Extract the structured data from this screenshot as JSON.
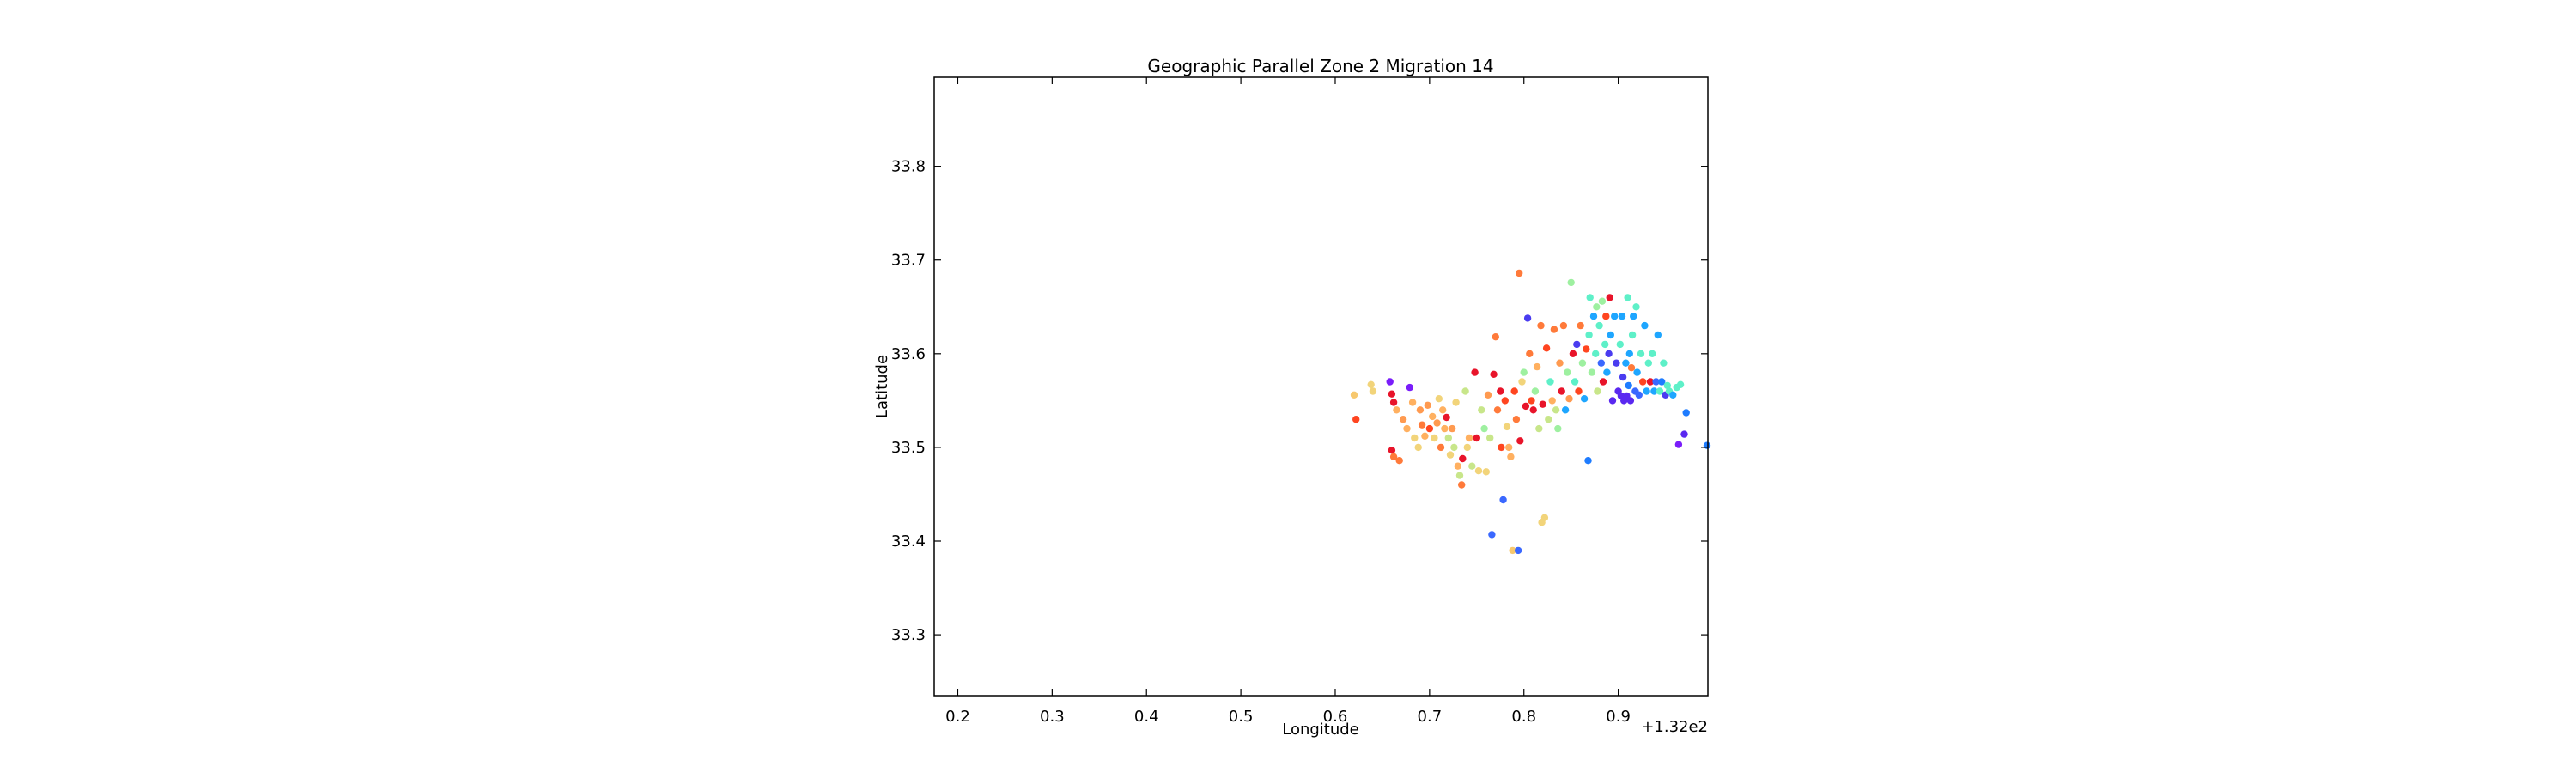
{
  "chart_data": {
    "type": "scatter",
    "title": "Geographic Parallel Zone 2 Migration 14",
    "xlabel": "Longitude",
    "ylabel": "Latitude",
    "x_offset_label": "+1.32e2",
    "xlim": [
      132.175,
      132.995
    ],
    "ylim": [
      33.235,
      33.895
    ],
    "x_ticks": [
      132.2,
      132.3,
      132.4,
      132.5,
      132.6,
      132.7,
      132.8,
      132.9
    ],
    "x_tick_labels": [
      "0.2",
      "0.3",
      "0.4",
      "0.5",
      "0.6",
      "0.7",
      "0.8",
      "0.9"
    ],
    "y_ticks": [
      33.3,
      33.4,
      33.5,
      33.6,
      33.7,
      33.8
    ],
    "y_tick_labels": [
      "33.3",
      "33.4",
      "33.5",
      "33.6",
      "33.7",
      "33.8"
    ],
    "grid": false,
    "legend": "none",
    "colormap": "rainbow",
    "points": [
      {
        "x": 132.62,
        "y": 33.556,
        "color": "#f7c86e"
      },
      {
        "x": 132.622,
        "y": 33.53,
        "color": "#ff4520"
      },
      {
        "x": 132.638,
        "y": 33.567,
        "color": "#f2d47a"
      },
      {
        "x": 132.64,
        "y": 33.56,
        "color": "#f2d47a"
      },
      {
        "x": 132.658,
        "y": 33.57,
        "color": "#7a1dfa"
      },
      {
        "x": 132.66,
        "y": 33.557,
        "color": "#e8142a"
      },
      {
        "x": 132.662,
        "y": 33.548,
        "color": "#e8142a"
      },
      {
        "x": 132.665,
        "y": 33.54,
        "color": "#ffb060"
      },
      {
        "x": 132.66,
        "y": 33.497,
        "color": "#e8142a"
      },
      {
        "x": 132.662,
        "y": 33.49,
        "color": "#ff7a3a"
      },
      {
        "x": 132.668,
        "y": 33.486,
        "color": "#ff7a3a"
      },
      {
        "x": 132.672,
        "y": 33.53,
        "color": "#ff9a50"
      },
      {
        "x": 132.676,
        "y": 33.52,
        "color": "#ffb060"
      },
      {
        "x": 132.679,
        "y": 33.564,
        "color": "#7a1dfa"
      },
      {
        "x": 132.682,
        "y": 33.548,
        "color": "#ffb060"
      },
      {
        "x": 132.684,
        "y": 33.51,
        "color": "#f2d47a"
      },
      {
        "x": 132.688,
        "y": 33.5,
        "color": "#f2d47a"
      },
      {
        "x": 132.69,
        "y": 33.54,
        "color": "#ff9a50"
      },
      {
        "x": 132.692,
        "y": 33.524,
        "color": "#ff7a3a"
      },
      {
        "x": 132.695,
        "y": 33.512,
        "color": "#ffb060"
      },
      {
        "x": 132.698,
        "y": 33.545,
        "color": "#ff9a50"
      },
      {
        "x": 132.7,
        "y": 33.52,
        "color": "#ff4520"
      },
      {
        "x": 132.703,
        "y": 33.533,
        "color": "#ffb060"
      },
      {
        "x": 132.705,
        "y": 33.51,
        "color": "#f2d47a"
      },
      {
        "x": 132.708,
        "y": 33.526,
        "color": "#ff9a50"
      },
      {
        "x": 132.71,
        "y": 33.552,
        "color": "#f2d47a"
      },
      {
        "x": 132.712,
        "y": 33.5,
        "color": "#ff7a3a"
      },
      {
        "x": 132.714,
        "y": 33.54,
        "color": "#ffb060"
      },
      {
        "x": 132.716,
        "y": 33.52,
        "color": "#ffb060"
      },
      {
        "x": 132.718,
        "y": 33.532,
        "color": "#e8142a"
      },
      {
        "x": 132.72,
        "y": 33.51,
        "color": "#c8e68a"
      },
      {
        "x": 132.722,
        "y": 33.492,
        "color": "#f2d47a"
      },
      {
        "x": 132.724,
        "y": 33.52,
        "color": "#ff9a50"
      },
      {
        "x": 132.726,
        "y": 33.5,
        "color": "#c8e68a"
      },
      {
        "x": 132.728,
        "y": 33.548,
        "color": "#f2d47a"
      },
      {
        "x": 132.73,
        "y": 33.48,
        "color": "#ffb060"
      },
      {
        "x": 132.732,
        "y": 33.47,
        "color": "#c8e68a"
      },
      {
        "x": 132.734,
        "y": 33.46,
        "color": "#ff7a3a"
      },
      {
        "x": 132.735,
        "y": 33.488,
        "color": "#e8142a"
      },
      {
        "x": 132.738,
        "y": 33.56,
        "color": "#c8e68a"
      },
      {
        "x": 132.74,
        "y": 33.5,
        "color": "#f2d47a"
      },
      {
        "x": 132.742,
        "y": 33.51,
        "color": "#ffb060"
      },
      {
        "x": 132.745,
        "y": 33.48,
        "color": "#c8e68a"
      },
      {
        "x": 132.748,
        "y": 33.58,
        "color": "#e8142a"
      },
      {
        "x": 132.75,
        "y": 33.51,
        "color": "#e8142a"
      },
      {
        "x": 132.752,
        "y": 33.475,
        "color": "#f2d47a"
      },
      {
        "x": 132.755,
        "y": 33.54,
        "color": "#c8e68a"
      },
      {
        "x": 132.758,
        "y": 33.52,
        "color": "#9ef0a0"
      },
      {
        "x": 132.76,
        "y": 33.474,
        "color": "#f2d47a"
      },
      {
        "x": 132.762,
        "y": 33.556,
        "color": "#ff9a50"
      },
      {
        "x": 132.764,
        "y": 33.51,
        "color": "#c8e68a"
      },
      {
        "x": 132.766,
        "y": 33.407,
        "color": "#3a68ff"
      },
      {
        "x": 132.768,
        "y": 33.578,
        "color": "#e8142a"
      },
      {
        "x": 132.77,
        "y": 33.618,
        "color": "#ff7a3a"
      },
      {
        "x": 132.772,
        "y": 33.54,
        "color": "#ff7a3a"
      },
      {
        "x": 132.775,
        "y": 33.56,
        "color": "#e8142a"
      },
      {
        "x": 132.776,
        "y": 33.5,
        "color": "#ff4520"
      },
      {
        "x": 132.778,
        "y": 33.444,
        "color": "#3a68ff"
      },
      {
        "x": 132.78,
        "y": 33.55,
        "color": "#ff4520"
      },
      {
        "x": 132.782,
        "y": 33.522,
        "color": "#f2d47a"
      },
      {
        "x": 132.784,
        "y": 33.5,
        "color": "#ffb060"
      },
      {
        "x": 132.786,
        "y": 33.49,
        "color": "#ffb060"
      },
      {
        "x": 132.788,
        "y": 33.39,
        "color": "#f7c86e"
      },
      {
        "x": 132.79,
        "y": 33.56,
        "color": "#ff4520"
      },
      {
        "x": 132.792,
        "y": 33.53,
        "color": "#ff7a3a"
      },
      {
        "x": 132.794,
        "y": 33.39,
        "color": "#3a68ff"
      },
      {
        "x": 132.795,
        "y": 33.686,
        "color": "#ff7a3a"
      },
      {
        "x": 132.796,
        "y": 33.507,
        "color": "#e8142a"
      },
      {
        "x": 132.798,
        "y": 33.57,
        "color": "#f2d47a"
      },
      {
        "x": 132.8,
        "y": 33.58,
        "color": "#9ef0a0"
      },
      {
        "x": 132.802,
        "y": 33.544,
        "color": "#e8142a"
      },
      {
        "x": 132.804,
        "y": 33.638,
        "color": "#4a3cf0"
      },
      {
        "x": 132.806,
        "y": 33.6,
        "color": "#ff7a3a"
      },
      {
        "x": 132.808,
        "y": 33.55,
        "color": "#ff4520"
      },
      {
        "x": 132.81,
        "y": 33.54,
        "color": "#e8142a"
      },
      {
        "x": 132.812,
        "y": 33.56,
        "color": "#9ef0a0"
      },
      {
        "x": 132.814,
        "y": 33.586,
        "color": "#ffb060"
      },
      {
        "x": 132.816,
        "y": 33.52,
        "color": "#c8e68a"
      },
      {
        "x": 132.818,
        "y": 33.63,
        "color": "#ff7a3a"
      },
      {
        "x": 132.819,
        "y": 33.42,
        "color": "#f2d47a"
      },
      {
        "x": 132.82,
        "y": 33.546,
        "color": "#e8142a"
      },
      {
        "x": 132.822,
        "y": 33.425,
        "color": "#f2d47a"
      },
      {
        "x": 132.824,
        "y": 33.606,
        "color": "#ff4520"
      },
      {
        "x": 132.826,
        "y": 33.53,
        "color": "#c8e68a"
      },
      {
        "x": 132.828,
        "y": 33.57,
        "color": "#5ef0c8"
      },
      {
        "x": 132.83,
        "y": 33.55,
        "color": "#ffb060"
      },
      {
        "x": 132.832,
        "y": 33.626,
        "color": "#ff7a3a"
      },
      {
        "x": 132.834,
        "y": 33.54,
        "color": "#c8e68a"
      },
      {
        "x": 132.836,
        "y": 33.52,
        "color": "#9ef0a0"
      },
      {
        "x": 132.838,
        "y": 33.59,
        "color": "#ff9a50"
      },
      {
        "x": 132.84,
        "y": 33.56,
        "color": "#e8142a"
      },
      {
        "x": 132.842,
        "y": 33.63,
        "color": "#ff7a3a"
      },
      {
        "x": 132.844,
        "y": 33.54,
        "color": "#1ea6ff"
      },
      {
        "x": 132.846,
        "y": 33.58,
        "color": "#9ef0a0"
      },
      {
        "x": 132.848,
        "y": 33.552,
        "color": "#ff9a50"
      },
      {
        "x": 132.85,
        "y": 33.676,
        "color": "#9ef0a0"
      },
      {
        "x": 132.852,
        "y": 33.6,
        "color": "#e8142a"
      },
      {
        "x": 132.854,
        "y": 33.57,
        "color": "#5ef0c8"
      },
      {
        "x": 132.856,
        "y": 33.61,
        "color": "#4a3cf0"
      },
      {
        "x": 132.858,
        "y": 33.56,
        "color": "#ff4520"
      },
      {
        "x": 132.86,
        "y": 33.63,
        "color": "#ff7a3a"
      },
      {
        "x": 132.862,
        "y": 33.59,
        "color": "#9ef0a0"
      },
      {
        "x": 132.864,
        "y": 33.552,
        "color": "#1ea6ff"
      },
      {
        "x": 132.866,
        "y": 33.605,
        "color": "#ff4520"
      },
      {
        "x": 132.868,
        "y": 33.486,
        "color": "#1e7cff"
      },
      {
        "x": 132.869,
        "y": 33.62,
        "color": "#5ef0c8"
      },
      {
        "x": 132.87,
        "y": 33.66,
        "color": "#5ef0c8"
      },
      {
        "x": 132.872,
        "y": 33.58,
        "color": "#9ef0a0"
      },
      {
        "x": 132.874,
        "y": 33.64,
        "color": "#1ea6ff"
      },
      {
        "x": 132.876,
        "y": 33.6,
        "color": "#5ef0c8"
      },
      {
        "x": 132.877,
        "y": 33.65,
        "color": "#9ef0a0"
      },
      {
        "x": 132.878,
        "y": 33.56,
        "color": "#c8e68a"
      },
      {
        "x": 132.88,
        "y": 33.63,
        "color": "#5ef0c8"
      },
      {
        "x": 132.882,
        "y": 33.59,
        "color": "#3a68ff"
      },
      {
        "x": 132.883,
        "y": 33.656,
        "color": "#9ef0a0"
      },
      {
        "x": 132.884,
        "y": 33.57,
        "color": "#e8142a"
      },
      {
        "x": 132.886,
        "y": 33.61,
        "color": "#5ef0c8"
      },
      {
        "x": 132.887,
        "y": 33.64,
        "color": "#ff4520"
      },
      {
        "x": 132.888,
        "y": 33.58,
        "color": "#1ea6ff"
      },
      {
        "x": 132.89,
        "y": 33.6,
        "color": "#4a3cf0"
      },
      {
        "x": 132.891,
        "y": 33.66,
        "color": "#e8142a"
      },
      {
        "x": 132.892,
        "y": 33.62,
        "color": "#1ea6ff"
      },
      {
        "x": 132.894,
        "y": 33.55,
        "color": "#5a28f0"
      },
      {
        "x": 132.896,
        "y": 33.64,
        "color": "#1ea6ff"
      },
      {
        "x": 132.898,
        "y": 33.59,
        "color": "#4a3cf0"
      },
      {
        "x": 132.9,
        "y": 33.56,
        "color": "#5a28f0"
      },
      {
        "x": 132.902,
        "y": 33.61,
        "color": "#5ef0c8"
      },
      {
        "x": 132.903,
        "y": 33.555,
        "color": "#5a28f0"
      },
      {
        "x": 132.904,
        "y": 33.64,
        "color": "#1ea6ff"
      },
      {
        "x": 132.905,
        "y": 33.575,
        "color": "#4a3cf0"
      },
      {
        "x": 132.906,
        "y": 33.55,
        "color": "#5a28f0"
      },
      {
        "x": 132.908,
        "y": 33.59,
        "color": "#1ea6ff"
      },
      {
        "x": 132.909,
        "y": 33.555,
        "color": "#5a28f0"
      },
      {
        "x": 132.91,
        "y": 33.66,
        "color": "#5ef0c8"
      },
      {
        "x": 132.911,
        "y": 33.566,
        "color": "#1e7cff"
      },
      {
        "x": 132.912,
        "y": 33.6,
        "color": "#1ea6ff"
      },
      {
        "x": 132.913,
        "y": 33.55,
        "color": "#5a28f0"
      },
      {
        "x": 132.914,
        "y": 33.585,
        "color": "#ff7a3a"
      },
      {
        "x": 132.915,
        "y": 33.62,
        "color": "#5ef0c8"
      },
      {
        "x": 132.916,
        "y": 33.64,
        "color": "#1ea6ff"
      },
      {
        "x": 132.918,
        "y": 33.56,
        "color": "#3a68ff"
      },
      {
        "x": 132.919,
        "y": 33.65,
        "color": "#5ef0c8"
      },
      {
        "x": 132.92,
        "y": 33.58,
        "color": "#1ea6ff"
      },
      {
        "x": 132.922,
        "y": 33.556,
        "color": "#3a68ff"
      },
      {
        "x": 132.924,
        "y": 33.6,
        "color": "#5ef0c8"
      },
      {
        "x": 132.926,
        "y": 33.57,
        "color": "#ff4520"
      },
      {
        "x": 132.928,
        "y": 33.63,
        "color": "#1ea6ff"
      },
      {
        "x": 132.93,
        "y": 33.56,
        "color": "#1ea6ff"
      },
      {
        "x": 132.932,
        "y": 33.59,
        "color": "#5ef0c8"
      },
      {
        "x": 132.934,
        "y": 33.57,
        "color": "#e8142a"
      },
      {
        "x": 132.936,
        "y": 33.6,
        "color": "#5ef0c8"
      },
      {
        "x": 132.938,
        "y": 33.56,
        "color": "#1ea6ff"
      },
      {
        "x": 132.94,
        "y": 33.57,
        "color": "#3a68ff"
      },
      {
        "x": 132.942,
        "y": 33.62,
        "color": "#1ea6ff"
      },
      {
        "x": 132.944,
        "y": 33.56,
        "color": "#5ef0c8"
      },
      {
        "x": 132.946,
        "y": 33.57,
        "color": "#1e7cff"
      },
      {
        "x": 132.948,
        "y": 33.59,
        "color": "#5ef0c8"
      },
      {
        "x": 132.95,
        "y": 33.556,
        "color": "#4a3cf0"
      },
      {
        "x": 132.952,
        "y": 33.566,
        "color": "#5ef0c8"
      },
      {
        "x": 132.954,
        "y": 33.56,
        "color": "#5ef0c8"
      },
      {
        "x": 132.958,
        "y": 33.556,
        "color": "#1ea6ff"
      },
      {
        "x": 132.962,
        "y": 33.564,
        "color": "#5ef0c8"
      },
      {
        "x": 132.964,
        "y": 33.503,
        "color": "#7a1dfa"
      },
      {
        "x": 132.966,
        "y": 33.567,
        "color": "#5ef0c8"
      },
      {
        "x": 132.97,
        "y": 33.514,
        "color": "#5a28f0"
      },
      {
        "x": 132.972,
        "y": 33.537,
        "color": "#1e7cff"
      },
      {
        "x": 132.995,
        "y": 33.502,
        "color": "#1e7cff"
      }
    ]
  }
}
